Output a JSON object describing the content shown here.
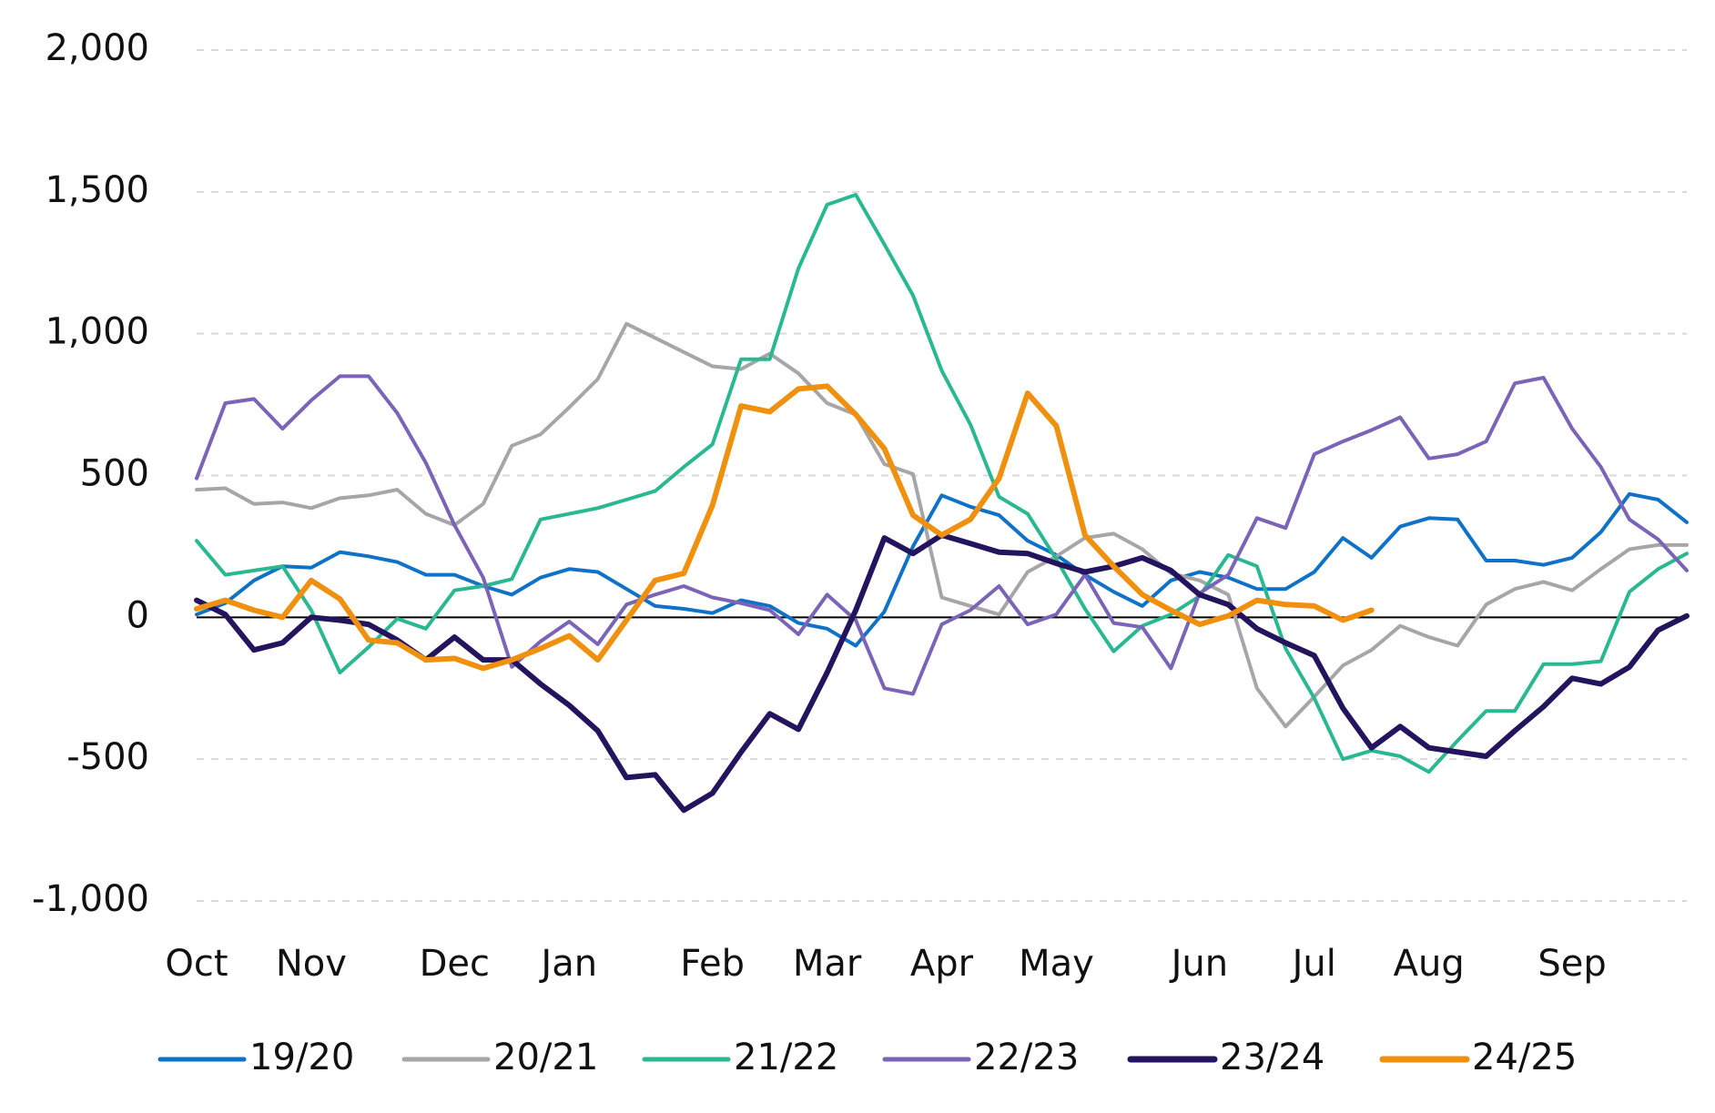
{
  "chart_data": {
    "type": "line",
    "categories": [
      "Oct",
      null,
      null,
      null,
      "Nov",
      null,
      null,
      null,
      null,
      "Dec",
      null,
      null,
      null,
      "Jan",
      null,
      null,
      null,
      null,
      "Feb",
      null,
      null,
      null,
      "Mar",
      null,
      null,
      null,
      "Apr",
      null,
      null,
      null,
      "May",
      null,
      null,
      null,
      null,
      "Jun",
      null,
      null,
      null,
      "Jul",
      null,
      null,
      null,
      "Aug",
      null,
      null,
      null,
      null,
      "Sep",
      null,
      null,
      null,
      null
    ],
    "ylim": [
      -1000,
      2000
    ],
    "yticks": [
      {
        "value": -1000,
        "label": "-1,000"
      },
      -500,
      0,
      500,
      {
        "value": 1000,
        "label": "1,000"
      },
      {
        "value": 1500,
        "label": "1,500"
      },
      {
        "value": 2000,
        "label": "2,000"
      }
    ],
    "grid": true,
    "legend": "bottom",
    "series": [
      {
        "name": "19/20",
        "color": "#0f72c7",
        "values": [
          10,
          50,
          130,
          180,
          175,
          230,
          215,
          195,
          150,
          150,
          110,
          80,
          140,
          170,
          160,
          100,
          40,
          30,
          15,
          60,
          40,
          -20,
          -40,
          -100,
          20,
          250,
          430,
          390,
          360,
          270,
          220,
          150,
          90,
          40,
          130,
          160,
          140,
          100,
          100,
          160,
          280,
          210,
          320,
          350,
          345,
          200,
          200,
          185,
          210,
          300,
          435,
          415,
          335
        ]
      },
      {
        "name": "20/21",
        "color": "#a6a6a8",
        "values": [
          450,
          455,
          400,
          405,
          385,
          420,
          430,
          450,
          365,
          325,
          400,
          605,
          645,
          740,
          840,
          1035,
          985,
          935,
          885,
          875,
          930,
          860,
          755,
          715,
          540,
          505,
          70,
          40,
          10,
          160,
          215,
          280,
          295,
          240,
          155,
          130,
          80,
          -250,
          -385,
          -280,
          -170,
          -115,
          -30,
          -70,
          -100,
          45,
          100,
          125,
          95,
          170,
          240,
          255,
          255
        ]
      },
      {
        "name": "21/22",
        "color": "#2ab892",
        "values": [
          270,
          150,
          165,
          180,
          25,
          -195,
          -105,
          -5,
          -40,
          95,
          110,
          135,
          345,
          365,
          385,
          415,
          445,
          530,
          610,
          910,
          910,
          1230,
          1455,
          1490,
          1315,
          1135,
          870,
          680,
          425,
          365,
          205,
          30,
          -120,
          -30,
          10,
          75,
          220,
          180,
          -110,
          -285,
          -500,
          -470,
          -490,
          -545,
          -435,
          -330,
          -330,
          -165,
          -165,
          -155,
          90,
          170,
          225
        ]
      },
      {
        "name": "22/23",
        "color": "#7b64b8",
        "values": [
          490,
          755,
          770,
          665,
          765,
          850,
          850,
          720,
          545,
          325,
          140,
          -175,
          -85,
          -15,
          -95,
          45,
          80,
          110,
          70,
          50,
          25,
          -60,
          80,
          -10,
          -250,
          -270,
          -25,
          25,
          110,
          -25,
          10,
          150,
          -20,
          -35,
          -180,
          85,
          150,
          350,
          315,
          575,
          620,
          660,
          705,
          560,
          575,
          620,
          825,
          845,
          665,
          530,
          345,
          275,
          165
        ]
      },
      {
        "name": "23/24",
        "color": "#24145e",
        "values": [
          60,
          10,
          -115,
          -90,
          0,
          -10,
          -25,
          -80,
          -150,
          -70,
          -150,
          -150,
          -235,
          -310,
          -400,
          -565,
          -555,
          -680,
          -620,
          -475,
          -340,
          -395,
          -195,
          25,
          280,
          225,
          290,
          260,
          230,
          225,
          190,
          160,
          180,
          210,
          165,
          80,
          45,
          -40,
          -90,
          -135,
          -320,
          -460,
          -385,
          -460,
          -475,
          -490,
          -400,
          -315,
          -215,
          -235,
          -175,
          -45,
          5
        ]
      },
      {
        "name": "24/25",
        "color": "#f0900f",
        "values": [
          30,
          60,
          25,
          0,
          130,
          65,
          -80,
          -90,
          -150,
          -145,
          -180,
          -150,
          -110,
          -65,
          -150,
          -10,
          130,
          155,
          395,
          745,
          725,
          805,
          815,
          715,
          595,
          360,
          290,
          345,
          490,
          790,
          675,
          290,
          180,
          80,
          25,
          -25,
          5,
          60,
          45,
          40,
          -10,
          25,
          null,
          null,
          null,
          null,
          null,
          null,
          null,
          null,
          null,
          null,
          null
        ]
      }
    ]
  }
}
